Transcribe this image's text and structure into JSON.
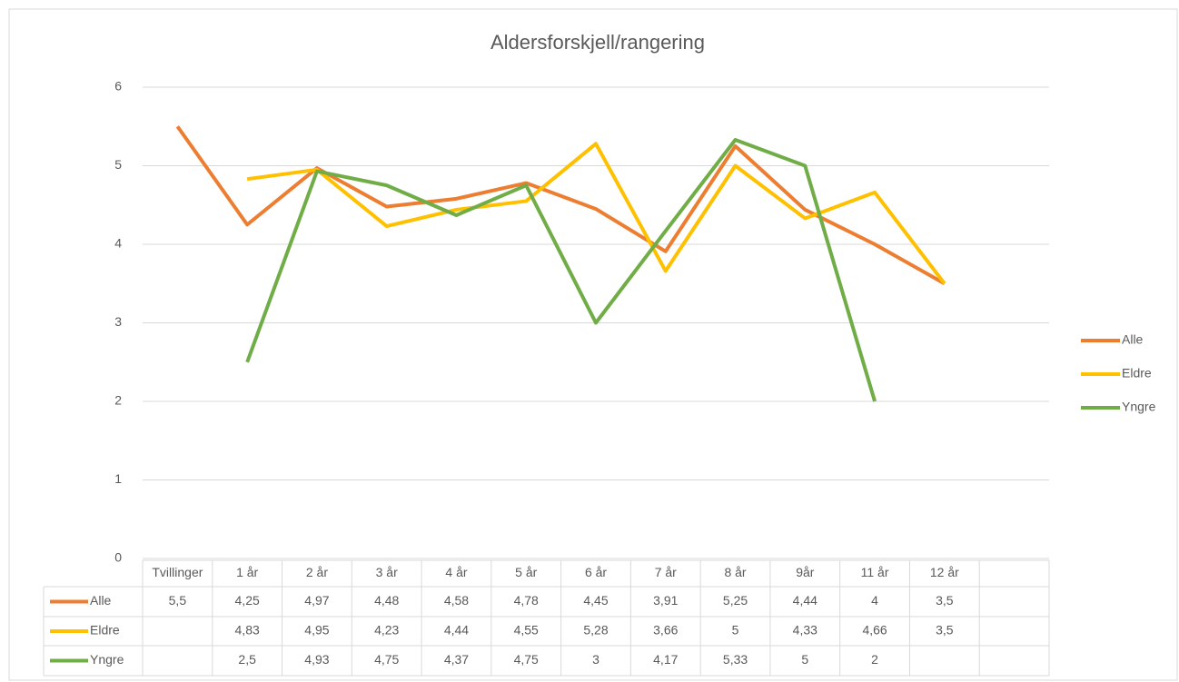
{
  "chart_data": {
    "type": "line",
    "title": "Aldersforskjell/rangering",
    "categories": [
      "Tvillinger",
      "1 år",
      "2 år",
      "3 år",
      "4 år",
      "5 år",
      "6 år",
      "7 år",
      "8 år",
      "9år",
      "11 år",
      "12 år",
      null
    ],
    "series": [
      {
        "name": "Alle",
        "color": "#ed7d31",
        "values": [
          5.5,
          4.25,
          4.97,
          4.48,
          4.58,
          4.78,
          4.45,
          3.91,
          5.25,
          4.44,
          4,
          3.5,
          null
        ],
        "value_labels": [
          "5,5",
          "4,25",
          "4,97",
          "4,48",
          "4,58",
          "4,78",
          "4,45",
          "3,91",
          "5,25",
          "4,44",
          "4",
          "3,5",
          null
        ]
      },
      {
        "name": "Eldre",
        "color": "#ffc000",
        "values": [
          null,
          4.83,
          4.95,
          4.23,
          4.44,
          4.55,
          5.28,
          3.66,
          5,
          4.33,
          4.66,
          3.5,
          null
        ],
        "value_labels": [
          null,
          "4,83",
          "4,95",
          "4,23",
          "4,44",
          "4,55",
          "5,28",
          "3,66",
          "5",
          "4,33",
          "4,66",
          "3,5",
          null
        ]
      },
      {
        "name": "Yngre",
        "color": "#70ad47",
        "values": [
          null,
          2.5,
          4.93,
          4.75,
          4.37,
          4.75,
          3,
          4.17,
          5.33,
          5,
          2,
          null,
          null
        ],
        "value_labels": [
          null,
          "2,5",
          "4,93",
          "4,75",
          "4,37",
          "4,75",
          "3",
          "4,17",
          "5,33",
          "5",
          "2",
          null,
          null
        ]
      }
    ],
    "ylim": [
      0,
      6
    ],
    "yticks": [
      0,
      1,
      2,
      3,
      4,
      5,
      6
    ],
    "grid": true,
    "legend": "right",
    "data_table": true
  }
}
